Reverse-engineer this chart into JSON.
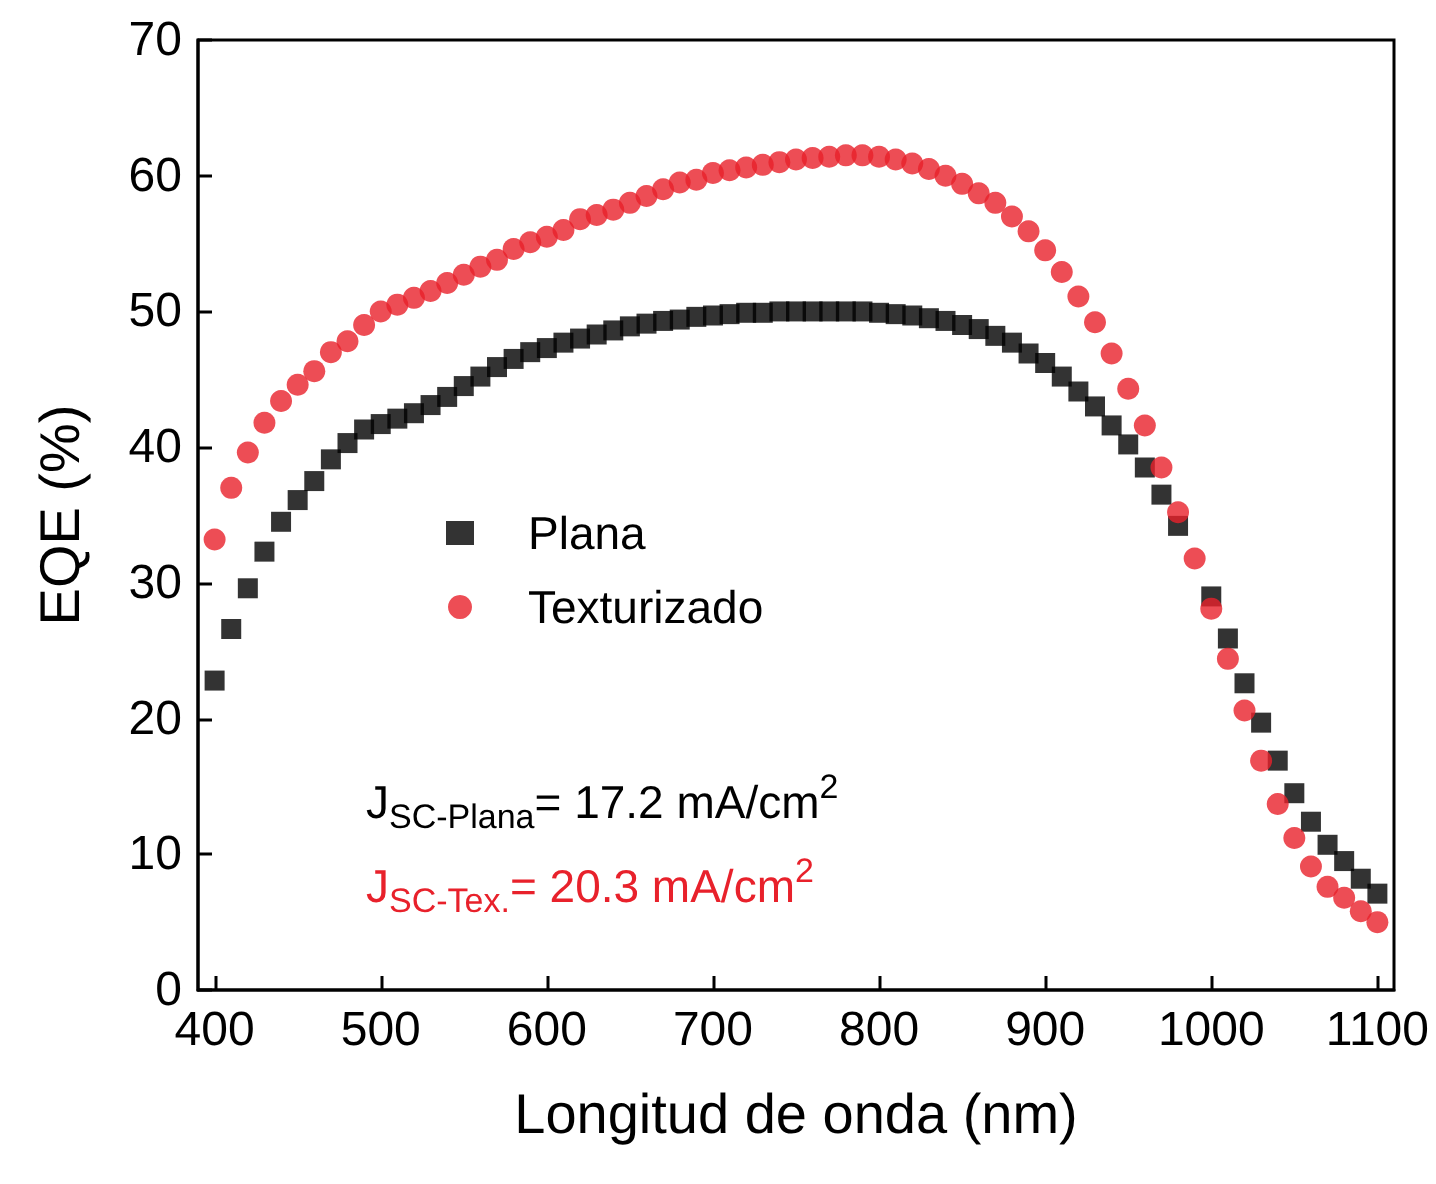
{
  "chart_data": {
    "type": "scatter",
    "xlabel": "Longitud de onda (nm)",
    "ylabel": "EQE (%)",
    "x": [
      400,
      410,
      420,
      430,
      440,
      450,
      460,
      470,
      480,
      490,
      500,
      510,
      520,
      530,
      540,
      550,
      560,
      570,
      580,
      590,
      600,
      610,
      620,
      630,
      640,
      650,
      660,
      670,
      680,
      690,
      700,
      710,
      720,
      730,
      740,
      750,
      760,
      770,
      780,
      790,
      800,
      810,
      820,
      830,
      840,
      850,
      860,
      870,
      880,
      890,
      900,
      910,
      920,
      930,
      940,
      950,
      960,
      970,
      980,
      990,
      1000,
      1010,
      1020,
      1030,
      1040,
      1050,
      1060,
      1070,
      1080,
      1090,
      1100
    ],
    "series": [
      {
        "name": "Plana",
        "color": "#000000",
        "marker": "square",
        "values": [
          22.8,
          26.6,
          29.6,
          32.3,
          34.5,
          36.1,
          37.5,
          39.1,
          40.3,
          41.3,
          41.7,
          42.1,
          42.5,
          43.1,
          43.7,
          44.5,
          45.2,
          45.9,
          46.5,
          47.0,
          47.3,
          47.7,
          48.0,
          48.3,
          48.6,
          48.9,
          49.1,
          49.3,
          49.4,
          49.6,
          49.7,
          49.8,
          49.9,
          49.9,
          50.0,
          50.0,
          50.0,
          50.0,
          50.0,
          50.0,
          49.9,
          49.8,
          49.7,
          49.5,
          49.3,
          49.0,
          48.7,
          48.2,
          47.7,
          46.9,
          46.2,
          45.2,
          44.1,
          43.0,
          41.6,
          40.2,
          38.5,
          36.5,
          34.2,
          null,
          29.0,
          25.9,
          22.6,
          19.7,
          16.9,
          14.5,
          12.4,
          10.7,
          9.5,
          8.2,
          7.1
        ]
      },
      {
        "name": "Texturizado",
        "color": "#e8212b",
        "marker": "circle",
        "values": [
          33.2,
          37.0,
          39.6,
          41.8,
          43.4,
          44.6,
          45.6,
          47.0,
          47.8,
          49.0,
          50.0,
          50.5,
          51.0,
          51.5,
          52.1,
          52.7,
          53.3,
          53.8,
          54.6,
          55.1,
          55.5,
          56.0,
          56.8,
          57.1,
          57.5,
          58.0,
          58.5,
          59.0,
          59.5,
          59.7,
          60.2,
          60.4,
          60.6,
          60.8,
          61.0,
          61.2,
          61.3,
          61.4,
          61.5,
          61.5,
          61.4,
          61.2,
          60.9,
          60.5,
          60.0,
          59.4,
          58.7,
          58.0,
          57.0,
          55.9,
          54.5,
          52.9,
          51.1,
          49.2,
          46.9,
          44.3,
          41.6,
          38.5,
          35.2,
          31.8,
          28.1,
          24.4,
          20.6,
          16.9,
          13.7,
          11.2,
          9.1,
          7.6,
          6.8,
          5.8,
          5.0
        ]
      }
    ],
    "annotations": [
      "J$_{SC-Plana}$= 17.2 mA/cm$^{2}$",
      "J$_{SC-Tex.}$= 20.3 mA/cm$^{2}$"
    ],
    "xlim": [
      390,
      1110
    ],
    "xticks": [
      400,
      500,
      600,
      700,
      800,
      900,
      1000,
      1100
    ],
    "ylim": [
      0,
      70
    ],
    "yticks": [
      0,
      10,
      20,
      30,
      40,
      50,
      60,
      70
    ],
    "grid": false,
    "legend": "left"
  }
}
